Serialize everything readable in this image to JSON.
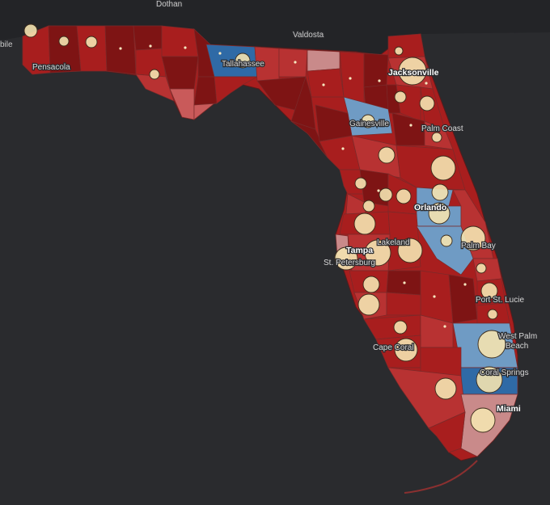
{
  "colors": {
    "background": "#2a2b2e",
    "land_outside": "#232427",
    "county_dark_red": "#7e1414",
    "county_red": "#a81e1e",
    "county_mid_red": "#b83232",
    "county_light_red": "#c95a5a",
    "county_pink": "#c98a8a",
    "county_light_blue": "#6f9bc4",
    "county_blue": "#2f6aa6",
    "bubble_fill": "#f4e3b0"
  },
  "labels": {
    "dothan": "Dothan",
    "valdosta": "Valdosta",
    "mobile": "bile",
    "pensacola": "Pensacola",
    "tallahassee": "Tallahassee",
    "jacksonville": "Jacksonville",
    "gainesville": "Gainesville",
    "palm_coast": "Palm Coast",
    "orlando": "Orlando",
    "lakeland": "Lakeland",
    "tampa": "Tampa",
    "st_petersburg": "St. Petersburg",
    "palm_bay": "Palm Bay",
    "port_st_lucie": "Port St. Lucie",
    "west_palm_beach_1": "West Palm",
    "west_palm_beach_2": "Beach",
    "cape_coral": "Cape Coral",
    "coral_springs": "Coral Springs",
    "miami": "Miami"
  }
}
